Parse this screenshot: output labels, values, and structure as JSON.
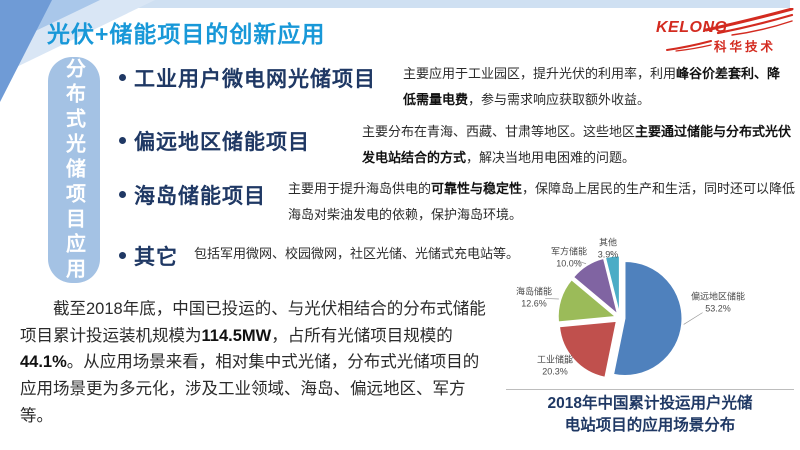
{
  "slide": {
    "title": "光伏+储能项目的创新应用",
    "logo": {
      "brand": "KELONG",
      "subtext": "科华技术"
    },
    "side_tab": "分布式光储项目应用",
    "bullets": [
      {
        "label": "工业用户微电网光储项目",
        "desc": [
          {
            "t": "主要应用于工业园区，提升光伏的利用率，利用",
            "b": false
          },
          {
            "t": "峰谷价差套利、降低需量电费",
            "b": true
          },
          {
            "t": "，参与需求响应获取额外收益。",
            "b": false
          }
        ]
      },
      {
        "label": "偏远地区储能项目",
        "desc": [
          {
            "t": "主要分布在青海、西藏、甘肃等地区。这些地区",
            "b": false
          },
          {
            "t": "主要通过储能与分布式光伏发电站结合的方式",
            "b": true
          },
          {
            "t": "，解决当地用电困难的问题。",
            "b": false
          }
        ]
      },
      {
        "label": "海岛储能项目",
        "desc": [
          {
            "t": "主要用于提升海岛供电的",
            "b": false
          },
          {
            "t": "可靠性与稳定性",
            "b": true
          },
          {
            "t": "，保障岛上居民的生产和生活，同时还可以降低海岛对柴油发电的依赖，保护海岛环境。",
            "b": false
          }
        ]
      },
      {
        "label": "其它",
        "desc": [
          {
            "t": "包括军用微网、校园微网，社区光储、光储式充电站等。",
            "b": false
          }
        ]
      }
    ],
    "summary": [
      {
        "t": "截至2018年底，中国已投运的、与光伏相结合的分布式储能项目累计投运装机规模为",
        "b": false
      },
      {
        "t": "114.5MW",
        "b": true
      },
      {
        "t": "，占所有光储项目规模的",
        "b": false
      },
      {
        "t": "44.1%",
        "b": true
      },
      {
        "t": "。从应用场景来看，相对集中式光储，分布式光储项目的应用场景更为多元化，涉及工业领域、海岛、偏远地区、军方等。",
        "b": false
      }
    ]
  },
  "chart_data": {
    "type": "pie",
    "title": "2018年中国累计投运用户光储电站项目的应用场景分布",
    "title_lines": [
      "2018年中国累计投运用户光储",
      "电站项目的应用场景分布"
    ],
    "categories": [
      "偏远地区储能",
      "工业储能",
      "海岛储能",
      "军方储能",
      "其他"
    ],
    "values": [
      53.2,
      20.3,
      12.6,
      10.0,
      3.9
    ],
    "colors": [
      "#4f81bd",
      "#c0504d",
      "#9bbb59",
      "#8064a2",
      "#4bacc6"
    ],
    "legend_position": "none",
    "label_style": "outside-callout",
    "exploded": true
  },
  "ui_colors": {
    "title_blue": "#1898d8",
    "bullet_navy": "#1f3864",
    "tab_blue": "#a4c2e4",
    "logo_red": "#d32b20"
  }
}
